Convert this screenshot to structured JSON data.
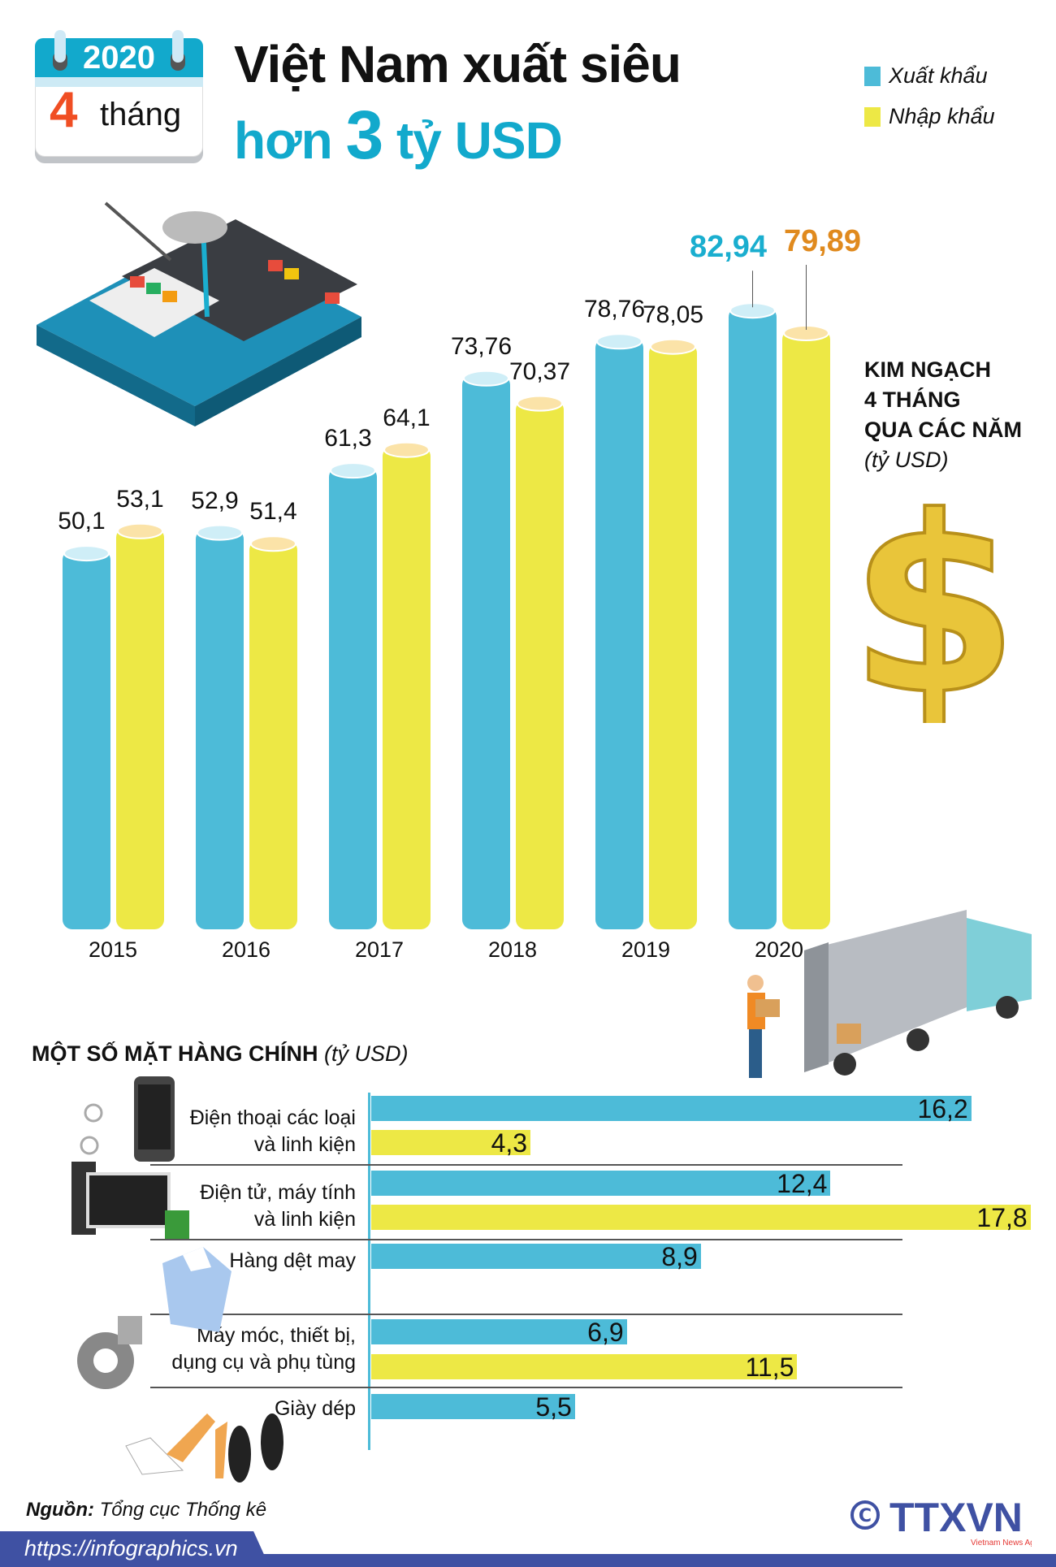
{
  "calendar": {
    "year": "2020",
    "number": "4",
    "unit": "tháng"
  },
  "title": {
    "line1": "Việt Nam xuất siêu",
    "line2_pre": "hơn ",
    "line2_num": "3",
    "line2_post": " tỷ USD"
  },
  "legend": [
    {
      "label": "Xuất khẩu",
      "color": "#4dbbd8"
    },
    {
      "label": "Nhập khẩu",
      "color": "#ede845"
    }
  ],
  "side_note": {
    "line1": "KIM NGẠCH",
    "line2": "4 THÁNG",
    "line3": "QUA CÁC NĂM",
    "unit": "(tỷ USD)"
  },
  "chart_data": [
    {
      "type": "bar",
      "categories": [
        "2015",
        "2016",
        "2017",
        "2018",
        "2019",
        "2020"
      ],
      "series": [
        {
          "name": "Xuất khẩu",
          "values": [
            50.1,
            52.9,
            61.3,
            73.76,
            78.76,
            82.94
          ],
          "labels": [
            "50,1",
            "52,9",
            "61,3",
            "73,76",
            "78,76",
            "82,94"
          ],
          "color": "#4dbbd8"
        },
        {
          "name": "Nhập khẩu",
          "values": [
            53.1,
            51.4,
            64.1,
            70.37,
            78.05,
            79.89
          ],
          "labels": [
            "53,1",
            "51,4",
            "64,1",
            "70,37",
            "78,05",
            "79,89"
          ],
          "color": "#ede845"
        }
      ],
      "highlight_colors": {
        "export": "#1aaecf",
        "import": "#e08a1e"
      }
    },
    {
      "type": "bar",
      "orientation": "horizontal",
      "title": "MỘT SỐ MẶT HÀNG CHÍNH",
      "unit": "(tỷ USD)",
      "categories": [
        {
          "line1": "Điện thoại các loại",
          "line2": "và linh kiện",
          "export": 16.2,
          "export_label": "16,2",
          "import": 4.3,
          "import_label": "4,3"
        },
        {
          "line1": "Điện tử, máy tính",
          "line2": "và linh kiện",
          "export": 12.4,
          "export_label": "12,4",
          "import": 17.8,
          "import_label": "17,8"
        },
        {
          "line1": "Hàng dệt may",
          "line2": "",
          "export": 8.9,
          "export_label": "8,9",
          "import": null,
          "import_label": null
        },
        {
          "line1": "Máy móc, thiết bị,",
          "line2": "dụng cụ và phụ tùng",
          "export": 6.9,
          "export_label": "6,9",
          "import": 11.5,
          "import_label": "11,5"
        },
        {
          "line1": "Giày dép",
          "line2": "",
          "export": 5.5,
          "export_label": "5,5",
          "import": null,
          "import_label": null
        }
      ]
    }
  ],
  "footer": {
    "source_label": "Nguồn:",
    "source": " Tổng cục Thống kê",
    "link": "https://infographics.vn",
    "logo": "TTXVN",
    "logo_sub": "Vietnam News Agency"
  }
}
